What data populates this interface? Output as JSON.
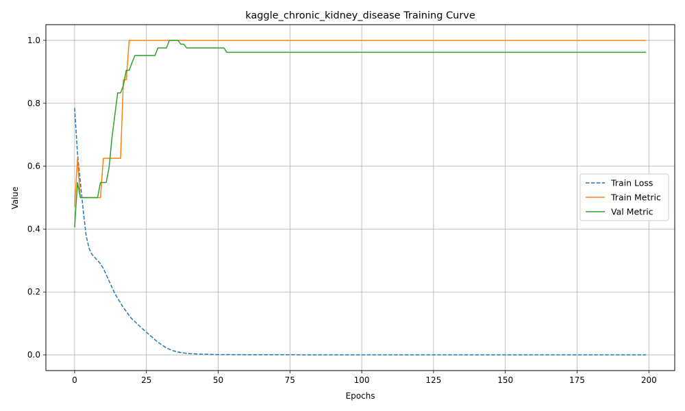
{
  "chart_data": {
    "type": "line",
    "title": "kaggle_chronic_kidney_disease Training Curve",
    "xlabel": "Epochs",
    "ylabel": "Value",
    "xlim": [
      -10,
      209
    ],
    "ylim": [
      -0.05,
      1.05
    ],
    "xticks": [
      0,
      25,
      50,
      75,
      100,
      125,
      150,
      175,
      200
    ],
    "yticks": [
      0.0,
      0.2,
      0.4,
      0.6,
      0.8,
      1.0
    ],
    "xtick_labels": [
      "0",
      "25",
      "50",
      "75",
      "100",
      "125",
      "150",
      "175",
      "200"
    ],
    "ytick_labels": [
      "0.0",
      "0.2",
      "0.4",
      "0.6",
      "0.8",
      "1.0"
    ],
    "grid": true,
    "legend_position": "center-right",
    "series": [
      {
        "name": "Train Loss",
        "color": "#1f77b4",
        "style": "dashed",
        "points": [
          [
            0,
            0.785
          ],
          [
            1,
            0.64
          ],
          [
            2,
            0.55
          ],
          [
            3,
            0.46
          ],
          [
            4,
            0.38
          ],
          [
            5,
            0.34
          ],
          [
            6,
            0.32
          ],
          [
            7,
            0.31
          ],
          [
            8,
            0.3
          ],
          [
            9,
            0.29
          ],
          [
            10,
            0.275
          ],
          [
            11,
            0.255
          ],
          [
            12,
            0.235
          ],
          [
            13,
            0.215
          ],
          [
            14,
            0.195
          ],
          [
            15,
            0.18
          ],
          [
            16,
            0.165
          ],
          [
            17,
            0.15
          ],
          [
            18,
            0.138
          ],
          [
            19,
            0.125
          ],
          [
            20,
            0.114
          ],
          [
            22,
            0.097
          ],
          [
            24,
            0.08
          ],
          [
            26,
            0.064
          ],
          [
            28,
            0.048
          ],
          [
            30,
            0.034
          ],
          [
            32,
            0.022
          ],
          [
            34,
            0.014
          ],
          [
            36,
            0.009
          ],
          [
            38,
            0.006
          ],
          [
            40,
            0.004
          ],
          [
            45,
            0.002
          ],
          [
            50,
            0.001
          ],
          [
            60,
            0.0005
          ],
          [
            80,
            0.0002
          ],
          [
            199,
            0.0
          ]
        ]
      },
      {
        "name": "Train Metric",
        "color": "#ff7f0e",
        "style": "solid",
        "points": [
          [
            0,
            0.47
          ],
          [
            1,
            0.625
          ],
          [
            2,
            0.5
          ],
          [
            3,
            0.5
          ],
          [
            8,
            0.5
          ],
          [
            9,
            0.5
          ],
          [
            10,
            0.625
          ],
          [
            16,
            0.625
          ],
          [
            17,
            0.875
          ],
          [
            18,
            0.875
          ],
          [
            19,
            1.0
          ],
          [
            199,
            1.0
          ]
        ]
      },
      {
        "name": "Val Metric",
        "color": "#2ca02c",
        "style": "solid",
        "points": [
          [
            0,
            0.405
          ],
          [
            1,
            0.548
          ],
          [
            2,
            0.5
          ],
          [
            8,
            0.5
          ],
          [
            9,
            0.548
          ],
          [
            11,
            0.548
          ],
          [
            12,
            0.595
          ],
          [
            13,
            0.69
          ],
          [
            14,
            0.762
          ],
          [
            15,
            0.833
          ],
          [
            16,
            0.833
          ],
          [
            17,
            0.857
          ],
          [
            18,
            0.905
          ],
          [
            19,
            0.905
          ],
          [
            20,
            0.929
          ],
          [
            21,
            0.952
          ],
          [
            28,
            0.952
          ],
          [
            29,
            0.976
          ],
          [
            32,
            0.976
          ],
          [
            33,
            1.0
          ],
          [
            36,
            1.0
          ],
          [
            37,
            0.988
          ],
          [
            38,
            0.988
          ],
          [
            39,
            0.976
          ],
          [
            52,
            0.976
          ],
          [
            53,
            0.962
          ],
          [
            199,
            0.962
          ]
        ]
      }
    ]
  }
}
